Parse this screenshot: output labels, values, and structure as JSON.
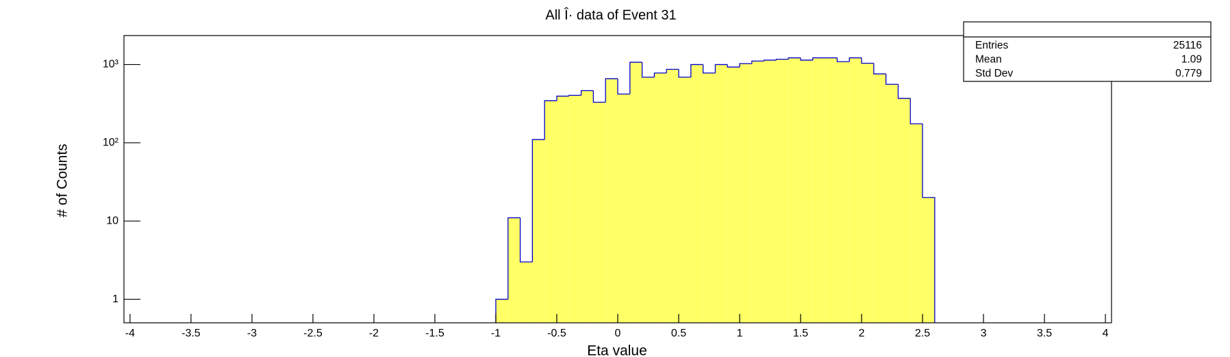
{
  "chart_data": {
    "type": "histogram",
    "title": "All Î· data of Event 31",
    "x_label": "Eta value",
    "y_label": "# of Counts",
    "bins": [
      -1.0,
      -0.9,
      -0.8,
      -0.7,
      -0.6,
      -0.5,
      -0.4,
      -0.3,
      -0.2,
      -0.1,
      0.0,
      0.1,
      0.2,
      0.3,
      0.4,
      0.5,
      0.6,
      0.7,
      0.8,
      0.9,
      1.0,
      1.1,
      1.2,
      1.3,
      1.4,
      1.5,
      1.6,
      1.7,
      1.8,
      1.9,
      2.0,
      2.1,
      2.2,
      2.3,
      2.4,
      2.5,
      2.6
    ],
    "values": [
      1,
      11,
      3,
      110,
      345,
      395,
      405,
      465,
      330,
      660,
      420,
      1070,
      690,
      780,
      870,
      690,
      1000,
      780,
      1000,
      930,
      1030,
      1110,
      1140,
      1170,
      1220,
      1140,
      1220,
      1220,
      1090,
      1220,
      1040,
      760,
      560,
      370,
      175,
      20
    ],
    "color": "#ffff66",
    "line_color": "#0000cc",
    "xlim": [
      -4.05,
      4.05
    ],
    "xticks": [
      -4,
      -3.5,
      -3,
      -2.5,
      -2,
      -1.5,
      -1,
      -0.5,
      0,
      0.5,
      1,
      1.5,
      2,
      2.5,
      3,
      3.5,
      4
    ],
    "ylim": [
      0.5,
      2350
    ],
    "log_y": true,
    "yticks": [
      1,
      10,
      {
        "value": 100,
        "label": "10²"
      },
      {
        "value": 1000,
        "label": "10³"
      }
    ],
    "stats": [
      {
        "name": "Entries",
        "value": 25116
      },
      {
        "name": "Mean",
        "value": 1.09
      },
      {
        "name": "Std Dev",
        "value": 0.779
      }
    ]
  }
}
